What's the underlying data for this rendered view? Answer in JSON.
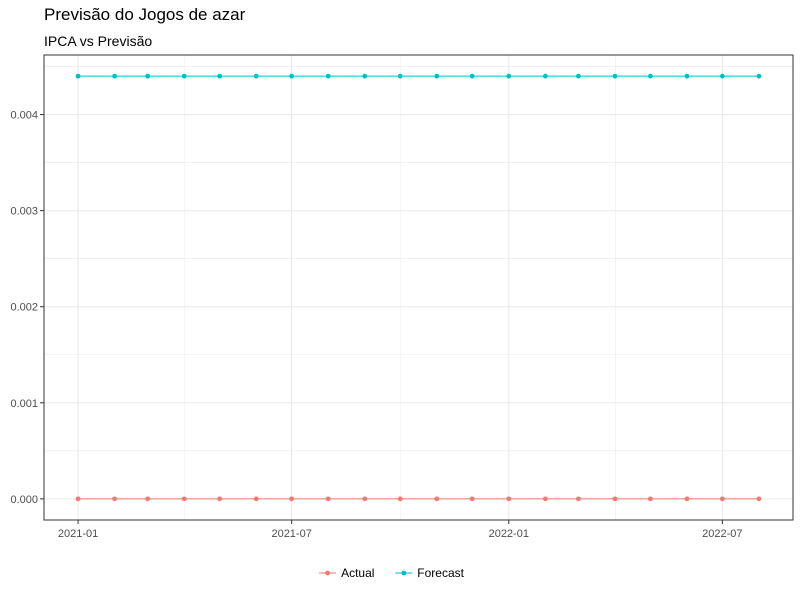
{
  "chart_data": {
    "type": "line",
    "title": "Previsão do Jogos de azar",
    "subtitle": "IPCA vs Previsão",
    "xlabel": "",
    "ylabel": "",
    "x": [
      "2021-01",
      "2021-02",
      "2021-03",
      "2021-04",
      "2021-05",
      "2021-06",
      "2021-07",
      "2021-08",
      "2021-09",
      "2021-10",
      "2021-11",
      "2021-12",
      "2022-01",
      "2022-02",
      "2022-03",
      "2022-04",
      "2022-05",
      "2022-06",
      "2022-07",
      "2022-08"
    ],
    "x_ticks": [
      "2021-01",
      "2021-07",
      "2022-01",
      "2022-07"
    ],
    "y_ticks": [
      "0.000",
      "0.001",
      "0.002",
      "0.003",
      "0.004"
    ],
    "ylim": [
      0,
      0.0044
    ],
    "grid": true,
    "legend_position": "bottom",
    "series": [
      {
        "name": "Actual",
        "color": "#F8766D",
        "values": [
          0,
          0,
          0,
          0,
          0,
          0,
          0,
          0,
          0,
          0,
          0,
          0,
          0,
          0,
          0,
          0,
          0,
          0,
          0,
          0
        ]
      },
      {
        "name": "Forecast",
        "color": "#00BFC4",
        "values": [
          0.0044,
          0.0044,
          0.0044,
          0.0044,
          0.0044,
          0.0044,
          0.0044,
          0.0044,
          0.0044,
          0.0044,
          0.0044,
          0.0044,
          0.0044,
          0.0044,
          0.0044,
          0.0044,
          0.0044,
          0.0044,
          0.0044,
          0.0044
        ]
      }
    ]
  }
}
